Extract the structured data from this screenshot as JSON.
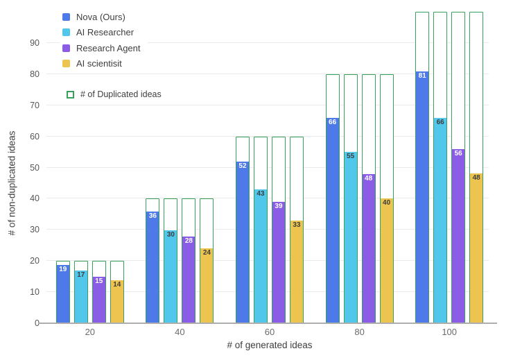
{
  "chart_data": {
    "type": "bar",
    "title": "",
    "xlabel": "# of generated ideas",
    "ylabel": "# of non-duplicated ideas",
    "categories": [
      20,
      40,
      60,
      80,
      100
    ],
    "y_ticks": [
      0,
      10,
      20,
      30,
      40,
      50,
      60,
      70,
      80,
      90
    ],
    "ylim": [
      0,
      100
    ],
    "grid": "horizontal",
    "legend_position": "top-left",
    "series": [
      {
        "name": "Nova (Ours)",
        "color": "#4D7AE8",
        "label_color": "#ffffff",
        "values": [
          19,
          36,
          52,
          66,
          81
        ]
      },
      {
        "name": "AI Researcher",
        "color": "#52C7EC",
        "label_color": "#3d3d3d",
        "values": [
          17,
          30,
          43,
          55,
          66
        ]
      },
      {
        "name": "Research Agent",
        "color": "#8B5CE6",
        "label_color": "#ffffff",
        "values": [
          15,
          28,
          39,
          48,
          56
        ]
      },
      {
        "name": "AI scientisit",
        "color": "#ECC44F",
        "label_color": "#3d3d3d",
        "values": [
          14,
          24,
          33,
          40,
          48
        ]
      }
    ],
    "duplicated_legend": {
      "label": "# of Duplicated ideas",
      "color": "#37A15C"
    },
    "duplicated_bar_totals": [
      20,
      40,
      60,
      80,
      100
    ]
  }
}
